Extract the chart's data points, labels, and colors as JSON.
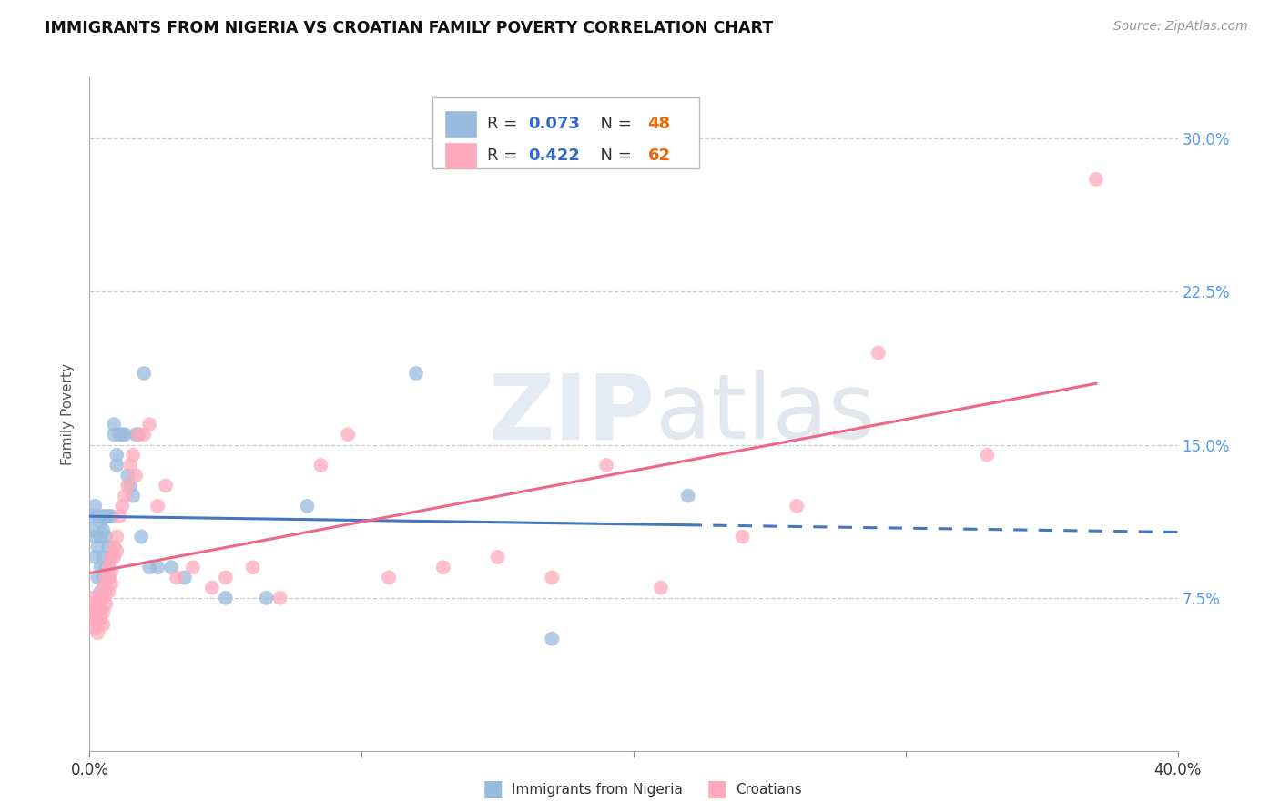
{
  "title": "IMMIGRANTS FROM NIGERIA VS CROATIAN FAMILY POVERTY CORRELATION CHART",
  "source": "Source: ZipAtlas.com",
  "ylabel": "Family Poverty",
  "yticks": [
    "7.5%",
    "15.0%",
    "22.5%",
    "30.0%"
  ],
  "ytick_vals": [
    0.075,
    0.15,
    0.225,
    0.3
  ],
  "xlim": [
    0.0,
    0.4
  ],
  "ylim": [
    0.0,
    0.33
  ],
  "legend_r1": "0.073",
  "legend_n1": "48",
  "legend_r2": "0.422",
  "legend_n2": "62",
  "color_nigeria": "#99BBDD",
  "color_croatia": "#FFAABC",
  "color_nigeria_line": "#4477BB",
  "color_croatia_line": "#EE6688",
  "watermark_zip": "ZIP",
  "watermark_atlas": "atlas",
  "nigeria_x": [
    0.001,
    0.001,
    0.002,
    0.002,
    0.002,
    0.003,
    0.003,
    0.003,
    0.004,
    0.004,
    0.004,
    0.004,
    0.005,
    0.005,
    0.005,
    0.005,
    0.006,
    0.006,
    0.006,
    0.007,
    0.007,
    0.007,
    0.008,
    0.008,
    0.009,
    0.009,
    0.01,
    0.01,
    0.011,
    0.012,
    0.013,
    0.014,
    0.015,
    0.016,
    0.017,
    0.018,
    0.019,
    0.02,
    0.022,
    0.025,
    0.03,
    0.035,
    0.05,
    0.065,
    0.08,
    0.12,
    0.17,
    0.22
  ],
  "nigeria_y": [
    0.115,
    0.108,
    0.12,
    0.105,
    0.095,
    0.115,
    0.1,
    0.085,
    0.112,
    0.105,
    0.09,
    0.078,
    0.115,
    0.108,
    0.095,
    0.085,
    0.115,
    0.105,
    0.09,
    0.115,
    0.1,
    0.085,
    0.115,
    0.095,
    0.16,
    0.155,
    0.145,
    0.14,
    0.155,
    0.155,
    0.155,
    0.135,
    0.13,
    0.125,
    0.155,
    0.155,
    0.105,
    0.185,
    0.09,
    0.09,
    0.09,
    0.085,
    0.075,
    0.075,
    0.12,
    0.185,
    0.055,
    0.125
  ],
  "croatia_x": [
    0.001,
    0.001,
    0.001,
    0.002,
    0.002,
    0.002,
    0.002,
    0.003,
    0.003,
    0.003,
    0.003,
    0.004,
    0.004,
    0.004,
    0.005,
    0.005,
    0.005,
    0.005,
    0.006,
    0.006,
    0.006,
    0.007,
    0.007,
    0.007,
    0.008,
    0.008,
    0.008,
    0.009,
    0.009,
    0.01,
    0.01,
    0.011,
    0.012,
    0.013,
    0.014,
    0.015,
    0.016,
    0.017,
    0.018,
    0.02,
    0.022,
    0.025,
    0.028,
    0.032,
    0.038,
    0.045,
    0.05,
    0.06,
    0.07,
    0.085,
    0.095,
    0.11,
    0.13,
    0.15,
    0.17,
    0.19,
    0.21,
    0.24,
    0.26,
    0.29,
    0.33,
    0.37
  ],
  "croatia_y": [
    0.07,
    0.065,
    0.075,
    0.068,
    0.072,
    0.065,
    0.06,
    0.07,
    0.068,
    0.062,
    0.058,
    0.075,
    0.07,
    0.065,
    0.08,
    0.075,
    0.068,
    0.062,
    0.085,
    0.078,
    0.072,
    0.09,
    0.085,
    0.078,
    0.095,
    0.088,
    0.082,
    0.1,
    0.095,
    0.105,
    0.098,
    0.115,
    0.12,
    0.125,
    0.13,
    0.14,
    0.145,
    0.135,
    0.155,
    0.155,
    0.16,
    0.12,
    0.13,
    0.085,
    0.09,
    0.08,
    0.085,
    0.09,
    0.075,
    0.14,
    0.155,
    0.085,
    0.09,
    0.095,
    0.085,
    0.14,
    0.08,
    0.105,
    0.12,
    0.195,
    0.145,
    0.28
  ]
}
